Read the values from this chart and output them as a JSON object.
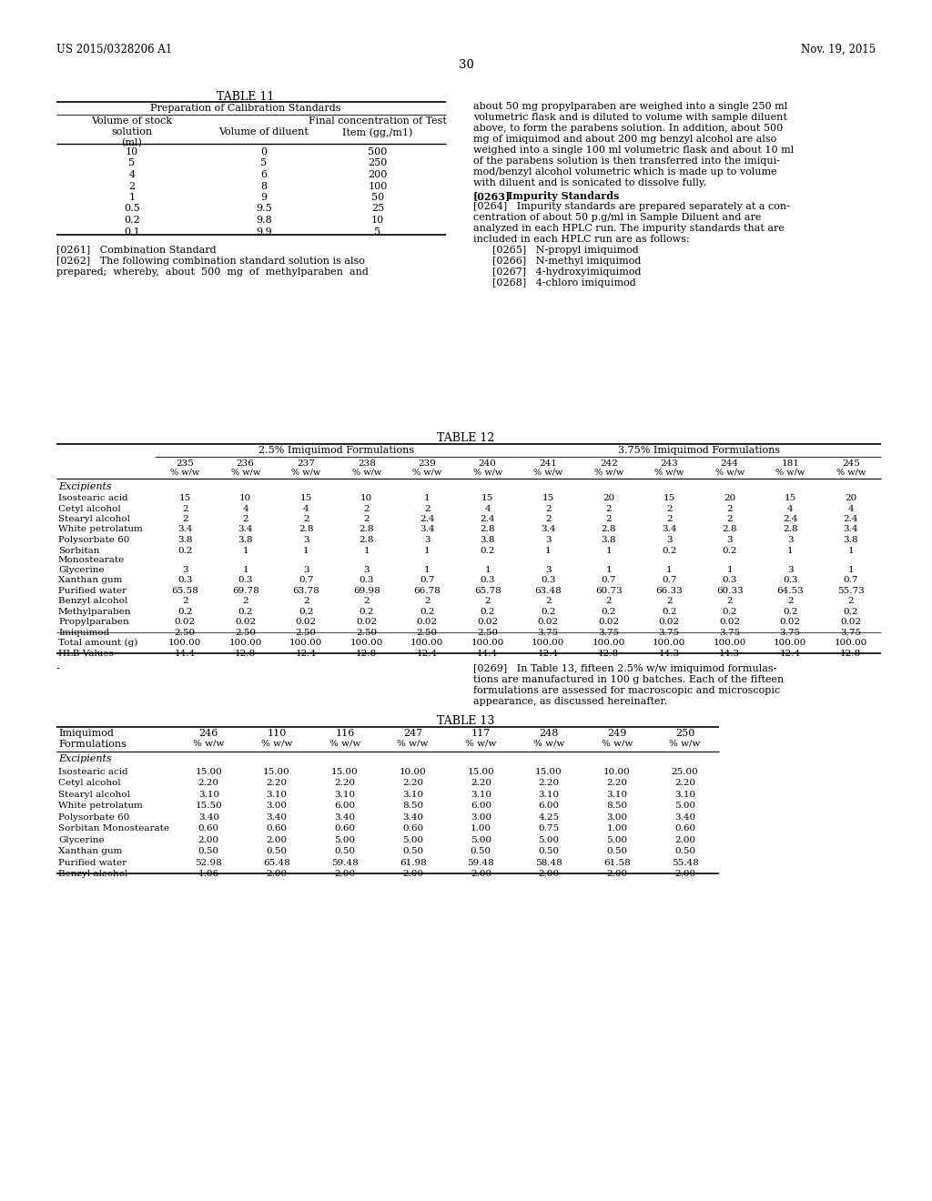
{
  "header_left": "US 2015/0328206 A1",
  "header_right": "Nov. 19, 2015",
  "page_num": "30",
  "table11_title": "TABLE 11",
  "table11_subtitle": "Preparation of Calibration Standards",
  "table11_data": [
    [
      "10",
      "0",
      "500"
    ],
    [
      "5",
      "5",
      "250"
    ],
    [
      "4",
      "6",
      "200"
    ],
    [
      "2",
      "8",
      "100"
    ],
    [
      "1",
      "9",
      "50"
    ],
    [
      "0.5",
      "9.5",
      "25"
    ],
    [
      "0.2",
      "9.8",
      "10"
    ],
    [
      "0.1",
      "9.9",
      "5"
    ]
  ],
  "para0261": "[0261]   Combination Standard",
  "para0262_lines": [
    "[0262]   The following combination standard solution is also",
    "prepared;  whereby,  about  500  mg  of  methylparaben  and"
  ],
  "right_col_lines": [
    "about 50 mg propylparaben are weighed into a single 250 ml",
    "volumetric flask and is diluted to volume with sample diluent",
    "above, to form the parabens solution. In addition, about 500",
    "mg of imiquimod and about 200 mg benzyl alcohol are also",
    "weighed into a single 100 ml volumetric flask and about 10 ml",
    "of the parabens solution is then transferred into the imiqui-",
    "mod/benzyl alcohol volumetric which is made up to volume",
    "with diluent and is sonicated to dissolve fully."
  ],
  "para0263": "[0263]   Impurity Standards",
  "para0264_lines": [
    "[0264]   Impurity standards are prepared separately at a con-",
    "centration of about 50 p.g/ml in Sample Diluent and are",
    "analyzed in each HPLC run. The impurity standards that are",
    "included in each HPLC run are as follows:"
  ],
  "para0265": "      [0265]   N-propyl imiquimod",
  "para0266": "      [0266]   N-methyl imiquimod",
  "para0267": "      [0267]   4-hydroxyimiquimod",
  "para0268": "      [0268]   4-chloro imiquimod",
  "table12_title": "TABLE 12",
  "table12_group1": "2.5% Imiquimod Formulations",
  "table12_group2": "3.75% Imiquimod Formulations",
  "table12_col_nums": [
    "235",
    "236",
    "237",
    "238",
    "239",
    "240",
    "241",
    "242",
    "243",
    "244",
    "181",
    "245"
  ],
  "table12_excipients": "Excipients",
  "table12_rows": [
    [
      "Isostearic acid",
      "15",
      "10",
      "15",
      "10",
      "1",
      "15",
      "15",
      "20",
      "15",
      "20",
      "15",
      "20"
    ],
    [
      "Cetyl alcohol",
      "2",
      "4",
      "4",
      "2",
      "2",
      "4",
      "2",
      "2",
      "2",
      "2",
      "4",
      "4"
    ],
    [
      "Stearyl alcohol",
      "2",
      "2",
      "2",
      "2",
      "2.4",
      "2.4",
      "2",
      "2",
      "2",
      "2",
      "2.4",
      "2.4"
    ],
    [
      "White petrolatum",
      "3.4",
      "3.4",
      "2.8",
      "2.8",
      "3.4",
      "2.8",
      "3.4",
      "2.8",
      "3.4",
      "2.8",
      "2.8",
      "3.4"
    ],
    [
      "Polysorbate 60",
      "3.8",
      "3.8",
      "3",
      "2.8",
      "3",
      "3.8",
      "3",
      "3.8",
      "3",
      "3",
      "3",
      "3.8"
    ],
    [
      "Sorbitan",
      "0.2",
      "1",
      "1",
      "1",
      "1",
      "0.2",
      "1",
      "1",
      "0.2",
      "0.2",
      "1",
      "1"
    ],
    [
      "Monostearate",
      "",
      "",
      "",
      "",
      "",
      "",
      "",
      "",
      "",
      "",
      "",
      ""
    ],
    [
      "Glycerine",
      "3",
      "1",
      "3",
      "3",
      "1",
      "1",
      "3",
      "1",
      "1",
      "1",
      "3",
      "1"
    ],
    [
      "Xanthan gum",
      "0.3",
      "0.3",
      "0.7",
      "0.3",
      "0.7",
      "0.3",
      "0.3",
      "0.7",
      "0.7",
      "0.3",
      "0.3",
      "0.7"
    ],
    [
      "Purified water",
      "65.58",
      "69.78",
      "63.78",
      "69.98",
      "66.78",
      "65.78",
      "63.48",
      "60.73",
      "66.33",
      "60.33",
      "64.53",
      "55.73"
    ],
    [
      "Benzyl alcohol",
      "2",
      "2",
      "2",
      "2",
      "2",
      "2",
      "2",
      "2",
      "2",
      "2",
      "2",
      "2"
    ],
    [
      "Methylparaben",
      "0.2",
      "0.2",
      "0.2",
      "0.2",
      "0.2",
      "0.2",
      "0.2",
      "0.2",
      "0.2",
      "0.2",
      "0.2",
      "0.2"
    ],
    [
      "Propylparaben",
      "0.02",
      "0.02",
      "0.02",
      "0.02",
      "0.02",
      "0.02",
      "0.02",
      "0.02",
      "0.02",
      "0.02",
      "0.02",
      "0.02"
    ],
    [
      "Imiquimod",
      "2.50",
      "2.50",
      "2.50",
      "2.50",
      "2.50",
      "2.50",
      "3.75",
      "3.75",
      "3.75",
      "3.75",
      "3.75",
      "3.75"
    ]
  ],
  "table12_sorbitan_vals": [
    "0.2",
    "1",
    "1",
    "1",
    "1",
    "0.2",
    "1",
    "1",
    "0.2",
    "0.2",
    "1",
    "1"
  ],
  "table12_total": [
    "100.00",
    "100.00",
    "100.00",
    "100.00",
    "100.00",
    "100.00",
    "100.00",
    "100.00",
    "100.00",
    "100.00",
    "100.00",
    "100.00"
  ],
  "table12_hlb": [
    "14.4",
    "12.8",
    "12.4",
    "12.8",
    "12.4",
    "14.4",
    "12.4",
    "12.8",
    "14.3",
    "14.3",
    "12.4",
    "12.8"
  ],
  "left_dash": "-",
  "para0269_lines": [
    "[0269]   In Table 13, fifteen 2.5% w/w imiquimod formulas-",
    "tions are manufactured in 100 g batches. Each of the fifteen",
    "formulations are assessed for macroscopic and microscopic",
    "appearance, as discussed hereinafter."
  ],
  "table13_title": "TABLE 13",
  "table13_col_nums": [
    "246",
    "110",
    "116",
    "247",
    "117",
    "248",
    "249",
    "250"
  ],
  "table13_excipients": "Excipients",
  "table13_rows": [
    [
      "Isostearic acid",
      "15.00",
      "15.00",
      "15.00",
      "10.00",
      "15.00",
      "15.00",
      "10.00",
      "25.00"
    ],
    [
      "Cetyl alcohol",
      "2.20",
      "2.20",
      "2.20",
      "2.20",
      "2.20",
      "2.20",
      "2.20",
      "2.20"
    ],
    [
      "Stearyl alcohol",
      "3.10",
      "3.10",
      "3.10",
      "3.10",
      "3.10",
      "3.10",
      "3.10",
      "3.10"
    ],
    [
      "White petrolatum",
      "15.50",
      "3.00",
      "6.00",
      "8.50",
      "6.00",
      "6.00",
      "8.50",
      "5.00"
    ],
    [
      "Polysorbate 60",
      "3.40",
      "3.40",
      "3.40",
      "3.40",
      "3.00",
      "4.25",
      "3.00",
      "3.40"
    ],
    [
      "Sorbitan Monostearate",
      "0.60",
      "0.60",
      "0.60",
      "0.60",
      "1.00",
      "0.75",
      "1.00",
      "0.60"
    ],
    [
      "Glycerine",
      "2.00",
      "2.00",
      "5.00",
      "5.00",
      "5.00",
      "5.00",
      "5.00",
      "2.00"
    ],
    [
      "Xanthan gum",
      "0.50",
      "0.50",
      "0.50",
      "0.50",
      "0.50",
      "0.50",
      "0.50",
      "0.50"
    ],
    [
      "Purified water",
      "52.98",
      "65.48",
      "59.48",
      "61.98",
      "59.48",
      "58.48",
      "61.58",
      "55.48"
    ],
    [
      "Benzyl alcohol",
      "1.06",
      "2.00",
      "2.00",
      "2.00",
      "2.00",
      "2.00",
      "2.00",
      "2.00"
    ]
  ]
}
